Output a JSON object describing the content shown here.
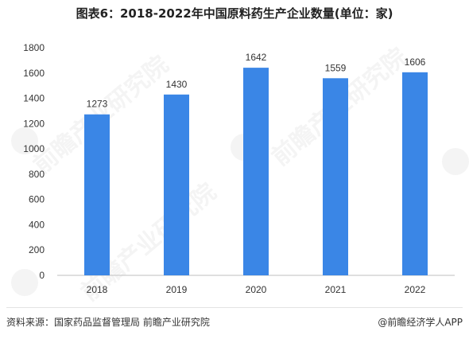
{
  "title": "图表6：2018-2022年中国原料药生产企业数量(单位：家)",
  "chart_data": {
    "type": "bar",
    "categories": [
      "2018",
      "2019",
      "2020",
      "2021",
      "2022"
    ],
    "values": [
      1273,
      1430,
      1642,
      1559,
      1606
    ],
    "ylim": [
      0,
      1800
    ],
    "yticks": [
      0,
      200,
      400,
      600,
      800,
      1000,
      1200,
      1400,
      1600,
      1800
    ],
    "bar_color": "#3a86e6",
    "data_labels": true,
    "grid": false
  },
  "watermark": "前瞻产业研究院",
  "footer": {
    "source": "资料来源：国家药品监督管理局 前瞻产业研究院",
    "credit": "@前瞻经济学人APP"
  }
}
